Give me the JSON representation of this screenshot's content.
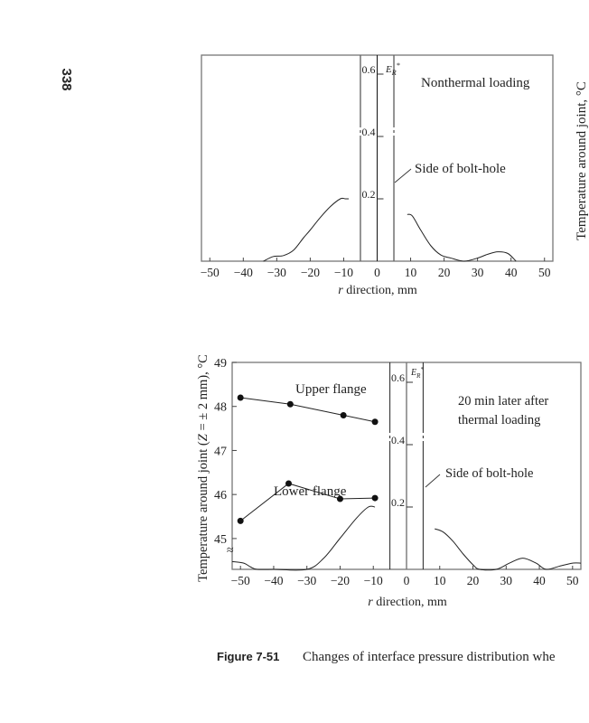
{
  "page_number": "338",
  "caption": {
    "label": "Figure 7-51",
    "text": "Changes of interface pressure distribution whe"
  },
  "right_axis_label": "Temperature around joint, °C",
  "chart_data": [
    {
      "type": "line",
      "title": "Nonthermal loading",
      "xlabel": "r direction, mm",
      "ylabel": "E_R*",
      "ylabel_main": "E",
      "ylabel_sub": "R",
      "ylabel_sup": "*",
      "xlim": [
        -52.5,
        52.5
      ],
      "ylim": [
        0,
        0.62
      ],
      "x_ticks": [
        -50,
        -40,
        -30,
        -20,
        -10,
        0,
        10,
        20,
        30,
        40,
        50
      ],
      "x_tick_labels": [
        "−50",
        "−40",
        "−30",
        "−20",
        "−10",
        "0",
        "10",
        "20",
        "30",
        "40",
        "50"
      ],
      "y_ticks": [
        0.2,
        0.4,
        0.6
      ],
      "y_tick_labels": [
        "0.2",
        "0.4",
        "0.6"
      ],
      "bolt_hole_edges": [
        -5,
        5
      ],
      "annotations": [
        "Side of bolt-hole"
      ],
      "series": [
        {
          "name": "E_R* left",
          "x": [
            -34,
            -31,
            -28,
            -25,
            -22,
            -20,
            -17,
            -14,
            -11,
            -9.5,
            -8.5
          ],
          "y": [
            0,
            0.015,
            0.018,
            0.035,
            0.075,
            0.1,
            0.14,
            0.175,
            0.2,
            0.2,
            0.2
          ]
        },
        {
          "name": "E_R* right",
          "x": [
            9,
            10.5,
            13,
            16,
            19,
            22,
            26,
            30,
            33,
            36,
            39,
            41.5
          ],
          "y": [
            0.15,
            0.145,
            0.1,
            0.05,
            0.02,
            0.01,
            0,
            0.01,
            0.022,
            0.03,
            0.025,
            0
          ]
        }
      ]
    },
    {
      "type": "line",
      "title": "20 min later after thermal loading",
      "title_lines": [
        "20 min later after",
        "thermal loading"
      ],
      "xlabel": "r direction, mm",
      "ylabel": "Temperature around joint (Z = ± 2 mm), °C",
      "ylabel_parts": [
        "Temperature around joint (",
        "Z",
        " = ± 2 mm), °C"
      ],
      "y2label_main": "E",
      "y2label_sub": "R",
      "y2label_sup": "*",
      "xlim": [
        -52.5,
        52.5
      ],
      "ylim": [
        44.3,
        49
      ],
      "y2lim": [
        0,
        0.62
      ],
      "x_ticks": [
        -50,
        -40,
        -30,
        -20,
        -10,
        0,
        10,
        20,
        30,
        40,
        50
      ],
      "x_tick_labels": [
        "−50",
        "−40",
        "−30",
        "−20",
        "−10",
        "0",
        "10",
        "20",
        "30",
        "40",
        "50"
      ],
      "y_ticks": [
        45,
        46,
        47,
        48,
        49
      ],
      "y_tick_labels": [
        "45",
        "46",
        "47",
        "48",
        "49"
      ],
      "y2_ticks": [
        0.2,
        0.4,
        0.6
      ],
      "y2_tick_labels": [
        "0.2",
        "0.4",
        "0.6"
      ],
      "bolt_hole_edges": [
        -5,
        5
      ],
      "annotations": [
        "Side of bolt-hole"
      ],
      "series": [
        {
          "name": "Upper flange",
          "axis": "temperature",
          "markers": true,
          "x": [
            -50,
            -35,
            -19,
            -9.5
          ],
          "y": [
            48.2,
            48.05,
            47.8,
            47.65
          ]
        },
        {
          "name": "Lower flange",
          "axis": "temperature",
          "markers": true,
          "x": [
            -50,
            -35.5,
            -20,
            -9.5
          ],
          "y": [
            45.4,
            46.25,
            45.9,
            45.92
          ]
        },
        {
          "name": "E_R* left",
          "axis": "E_R*",
          "markers": false,
          "x": [
            -52.5,
            -49,
            -47,
            -45,
            -40,
            -30,
            -25,
            -20,
            -15,
            -11.5,
            -9.5
          ],
          "y": [
            0.025,
            0.02,
            0.008,
            0,
            0,
            0,
            0.035,
            0.1,
            0.165,
            0.2,
            0.2
          ]
        },
        {
          "name": "E_R* right",
          "axis": "E_R*",
          "markers": false,
          "x": [
            8.5,
            11,
            14,
            17,
            20,
            22,
            27,
            31,
            35,
            39,
            42,
            46,
            50,
            52.5
          ],
          "y": [
            0.13,
            0.12,
            0.09,
            0.05,
            0.015,
            0,
            0,
            0.02,
            0.036,
            0.02,
            0,
            0.01,
            0.02,
            0.02
          ]
        }
      ]
    }
  ]
}
